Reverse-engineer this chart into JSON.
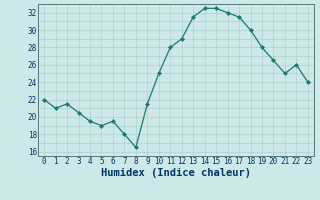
{
  "x": [
    0,
    1,
    2,
    3,
    4,
    5,
    6,
    7,
    8,
    9,
    10,
    11,
    12,
    13,
    14,
    15,
    16,
    17,
    18,
    19,
    20,
    21,
    22,
    23
  ],
  "y": [
    22,
    21,
    21.5,
    20.5,
    19.5,
    19,
    19.5,
    18,
    16.5,
    21.5,
    25,
    28,
    29,
    31.5,
    32.5,
    32.5,
    32,
    31.5,
    30,
    28,
    26.5,
    25,
    26,
    24
  ],
  "line_color": "#1a7a6e",
  "marker_color": "#1a7a6e",
  "bg_color": "#cce8e8",
  "grid_major_color": "#b0d0d0",
  "grid_minor_color": "#b0d0d0",
  "xlabel": "Humidex (Indice chaleur)",
  "xlabel_color": "#003366",
  "ylim": [
    15.5,
    33.0
  ],
  "xlim": [
    -0.5,
    23.5
  ],
  "yticks": [
    16,
    18,
    20,
    22,
    24,
    26,
    28,
    30,
    32
  ],
  "xtick_labels": [
    "0",
    "1",
    "2",
    "3",
    "4",
    "5",
    "6",
    "7",
    "8",
    "9",
    "1011",
    "1213",
    "1415",
    "1617",
    "1819",
    "2021",
    "2223"
  ],
  "tick_label_fontsize": 5.5,
  "xlabel_fontsize": 7.5
}
